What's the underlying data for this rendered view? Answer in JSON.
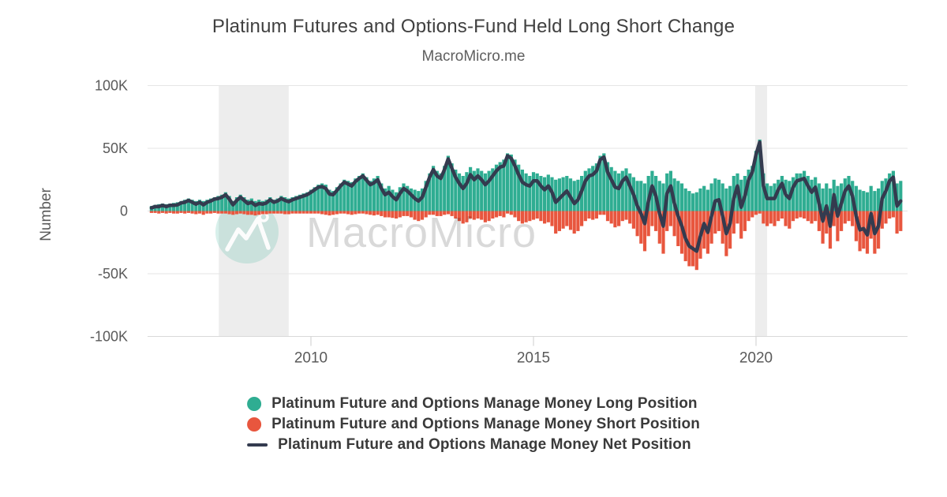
{
  "title": "Platinum Futures and Options-Fund Held Long Short Change",
  "subtitle": "MacroMicro.me",
  "watermark": {
    "text": "MacroMicro",
    "logo": "macromicro-mountain-logo"
  },
  "colors": {
    "long": "#2fad92",
    "short": "#e8563e",
    "net": "#343b4f",
    "recession_band": "#ededed",
    "gridline": "#e5e5e5",
    "axis_line": "#d9d9d9",
    "tick": "#cccccc",
    "axis_text": "#5a5a5a",
    "title_text": "#404040",
    "legend_text": "#3a3a3a"
  },
  "y_axis": {
    "label": "Number",
    "ticks": [
      {
        "label": "100K",
        "value_k": 100
      },
      {
        "label": "50K",
        "value_k": 50
      },
      {
        "label": "0",
        "value_k": 0
      },
      {
        "label": "-50K",
        "value_k": -50
      },
      {
        "label": "-100K",
        "value_k": -100
      }
    ]
  },
  "x_axis": {
    "ticks": [
      {
        "label": "2010",
        "year": 2010
      },
      {
        "label": "2015",
        "year": 2015
      },
      {
        "label": "2020",
        "year": 2020
      }
    ]
  },
  "recession_bands": [
    {
      "start_year": 2007.93,
      "end_year": 2009.5
    },
    {
      "start_year": 2019.98,
      "end_year": 2020.25
    }
  ],
  "chart_data": {
    "type": "bar+line",
    "title": "Platinum Futures and Options-Fund Held Long Short Change",
    "xlabel": "",
    "ylabel": "Number",
    "ylim_k": [
      -100,
      100
    ],
    "x_start_decimal_year": 2006.4167,
    "points_per_year": 12,
    "x_range_years": [
      2006.33,
      2023.4
    ],
    "unit": "contracts (thousands)",
    "legend_position": "bottom",
    "series": [
      {
        "name": "Platinum Future and Options Manage Money Long Position",
        "type": "bar",
        "sign": "positive",
        "color": "#2fad92",
        "values_k": [
          4,
          5,
          5.5,
          6,
          5.5,
          6,
          6.5,
          7,
          8,
          9,
          10,
          9,
          8,
          9,
          8,
          9,
          10,
          11,
          12,
          13,
          15,
          12,
          8,
          11,
          13,
          11,
          9,
          10,
          8,
          9,
          8,
          9,
          11,
          9,
          10,
          12,
          11,
          10,
          11,
          12,
          13,
          14,
          15,
          17,
          19,
          21,
          22,
          21,
          17,
          16,
          19,
          22,
          25,
          24,
          23,
          26,
          28,
          30,
          27,
          24,
          26,
          28,
          22,
          18,
          20,
          17,
          15,
          19,
          22,
          20,
          18,
          17,
          16,
          18,
          24,
          30,
          36,
          32,
          30,
          36,
          44,
          38,
          33,
          30,
          28,
          31,
          35,
          32,
          34,
          32,
          30,
          32,
          34,
          37,
          39,
          41,
          46,
          45,
          41,
          37,
          33,
          30,
          28,
          31,
          30,
          28,
          27,
          29,
          27,
          25,
          26,
          27,
          28,
          26,
          24,
          25,
          28,
          32,
          34,
          36,
          38,
          44,
          46,
          39,
          35,
          32,
          30,
          32,
          34,
          30,
          27,
          24,
          24,
          22,
          28,
          32,
          28,
          24,
          22,
          30,
          32,
          26,
          24,
          22,
          18,
          16,
          14,
          15,
          18,
          20,
          17,
          22,
          26,
          25,
          22,
          18,
          20,
          28,
          30,
          25,
          28,
          33,
          36,
          48,
          57,
          30,
          22,
          20,
          22,
          25,
          28,
          25,
          24,
          27,
          30,
          30,
          32,
          28,
          25,
          27,
          22,
          18,
          22,
          18,
          25,
          20,
          22,
          26,
          28,
          24,
          20,
          17,
          16,
          15,
          20,
          16,
          18,
          24,
          26,
          30,
          32,
          22,
          24
        ]
      },
      {
        "name": "Platinum Future and Options Manage Money Short Position",
        "type": "bar",
        "sign": "negative",
        "color": "#e8563e",
        "values_k": [
          1.5,
          1.5,
          2,
          1.5,
          2,
          1.5,
          2,
          2,
          1.5,
          2,
          1.5,
          2,
          2.5,
          2,
          3,
          2,
          2,
          1.5,
          2,
          2,
          2,
          2.5,
          3,
          2.5,
          2,
          2.5,
          3,
          3,
          3.5,
          3,
          2.5,
          2.5,
          2,
          2,
          2,
          2,
          2.5,
          2.5,
          2,
          2,
          2,
          2,
          2,
          2,
          2,
          2,
          2.5,
          3,
          3.5,
          3,
          2.5,
          2,
          2,
          2.5,
          3,
          2.5,
          2,
          2,
          2.5,
          3,
          3.5,
          3,
          4,
          5,
          5,
          5.5,
          6,
          5,
          4,
          4,
          5,
          7,
          8,
          7,
          5,
          3,
          3,
          4,
          4,
          3,
          2.5,
          4,
          6,
          8,
          10,
          9,
          6,
          7,
          6,
          7,
          9,
          8,
          6,
          5,
          4,
          5,
          2,
          3,
          5,
          8,
          10,
          9,
          8,
          7,
          6,
          8,
          10,
          9,
          12,
          18,
          16,
          14,
          12,
          15,
          18,
          16,
          12,
          8,
          6,
          7,
          6,
          3,
          3,
          8,
          10,
          13,
          12,
          8,
          7,
          10,
          14,
          20,
          26,
          32,
          20,
          12,
          16,
          26,
          34,
          16,
          12,
          20,
          28,
          34,
          40,
          44,
          44,
          47,
          38,
          30,
          34,
          26,
          18,
          16,
          26,
          36,
          30,
          18,
          10,
          22,
          16,
          8,
          5,
          3,
          2,
          10,
          12,
          10,
          12,
          8,
          6,
          12,
          14,
          8,
          6,
          5,
          6,
          8,
          10,
          8,
          16,
          26,
          18,
          30,
          12,
          24,
          16,
          10,
          8,
          12,
          24,
          32,
          30,
          34,
          22,
          34,
          30,
          14,
          10,
          6,
          5,
          18,
          16
        ]
      },
      {
        "name": "Platinum Future and Options Manage Money Net Position",
        "type": "line",
        "color": "#343b4f",
        "values_k": [
          2.5,
          3.5,
          3.5,
          4.5,
          3.5,
          4.5,
          4.5,
          5,
          6.5,
          7,
          8.5,
          7,
          5.5,
          7,
          5,
          7,
          8,
          9.5,
          10,
          11,
          13,
          9.5,
          5,
          8.5,
          11,
          8.5,
          6,
          7,
          4.5,
          6,
          5.5,
          6.5,
          9,
          7,
          8,
          10,
          8.5,
          7.5,
          9,
          10,
          11,
          12,
          13,
          15,
          17,
          19,
          19.5,
          18,
          13.5,
          13,
          16.5,
          20,
          23,
          21.5,
          20,
          23.5,
          26,
          28,
          24.5,
          21,
          22.5,
          25,
          18,
          13,
          15,
          11.5,
          9,
          14,
          18,
          16,
          13,
          10,
          8,
          11,
          19,
          27,
          33,
          28,
          26,
          33,
          41.5,
          34,
          27,
          22,
          18,
          22,
          29,
          25,
          28,
          25,
          21,
          24,
          28,
          32,
          35,
          36,
          44,
          42,
          36,
          29,
          23,
          21,
          20,
          24,
          24,
          20,
          17,
          20,
          15,
          7,
          10,
          13,
          16,
          11,
          6,
          9,
          16,
          24,
          28,
          29,
          32,
          41,
          43,
          31,
          25,
          19,
          18,
          24,
          27,
          20,
          13,
          4,
          -2,
          -10,
          8,
          20,
          12,
          -2,
          -12,
          14,
          20,
          6,
          -4,
          -12,
          -22,
          -28,
          -30,
          -32,
          -20,
          -10,
          -17,
          -4,
          8,
          9,
          -4,
          -18,
          -10,
          10,
          20,
          3,
          12,
          25,
          31,
          45,
          55,
          20,
          10,
          10,
          10,
          17,
          22,
          13,
          10,
          19,
          24,
          25,
          26,
          20,
          15,
          19,
          6,
          -8,
          4,
          -12,
          13,
          -4,
          6,
          16,
          20,
          12,
          -4,
          -15,
          -14,
          -19,
          -2,
          -18,
          -12,
          10,
          16,
          24,
          27,
          4,
          8
        ]
      }
    ]
  }
}
